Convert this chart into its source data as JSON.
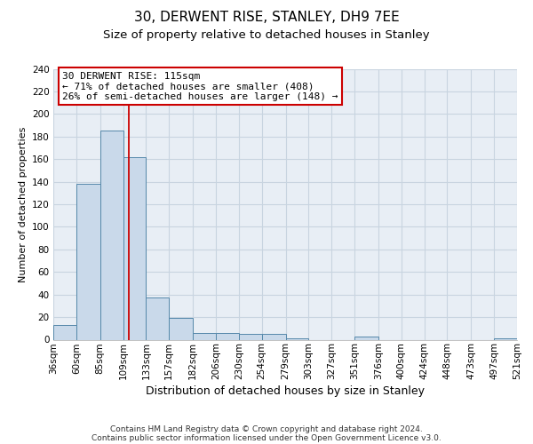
{
  "title": "30, DERWENT RISE, STANLEY, DH9 7EE",
  "subtitle": "Size of property relative to detached houses in Stanley",
  "xlabel": "Distribution of detached houses by size in Stanley",
  "ylabel": "Number of detached properties",
  "bar_left_edges": [
    36,
    60,
    85,
    109,
    133,
    157,
    182,
    206,
    230,
    254,
    279,
    303,
    327,
    351,
    376,
    400,
    424,
    448,
    473,
    497
  ],
  "bar_heights": [
    13,
    138,
    185,
    162,
    37,
    19,
    6,
    6,
    5,
    5,
    1,
    0,
    0,
    3,
    0,
    0,
    0,
    0,
    0,
    1
  ],
  "bar_widths": [
    24,
    25,
    24,
    24,
    24,
    25,
    24,
    24,
    24,
    25,
    24,
    24,
    24,
    25,
    24,
    24,
    24,
    25,
    24,
    24
  ],
  "tick_labels": [
    "36sqm",
    "60sqm",
    "85sqm",
    "109sqm",
    "133sqm",
    "157sqm",
    "182sqm",
    "206sqm",
    "230sqm",
    "254sqm",
    "279sqm",
    "303sqm",
    "327sqm",
    "351sqm",
    "376sqm",
    "400sqm",
    "424sqm",
    "448sqm",
    "473sqm",
    "497sqm",
    "521sqm"
  ],
  "ylim": [
    0,
    240
  ],
  "yticks": [
    0,
    20,
    40,
    60,
    80,
    100,
    120,
    140,
    160,
    180,
    200,
    220,
    240
  ],
  "vline_x": 115,
  "vline_color": "#cc0000",
  "bar_facecolor": "#c9d9ea",
  "bar_edgecolor": "#5588aa",
  "annotation_text_line1": "30 DERWENT RISE: 115sqm",
  "annotation_text_line2": "← 71% of detached houses are smaller (408)",
  "annotation_text_line3": "26% of semi-detached houses are larger (148) →",
  "grid_color": "#c8d4e0",
  "bg_color": "#e8eef5",
  "footer_line1": "Contains HM Land Registry data © Crown copyright and database right 2024.",
  "footer_line2": "Contains public sector information licensed under the Open Government Licence v3.0.",
  "title_fontsize": 11,
  "subtitle_fontsize": 9.5,
  "xlabel_fontsize": 9,
  "ylabel_fontsize": 8,
  "tick_fontsize": 7.5,
  "annot_fontsize": 8,
  "footer_fontsize": 6.5
}
